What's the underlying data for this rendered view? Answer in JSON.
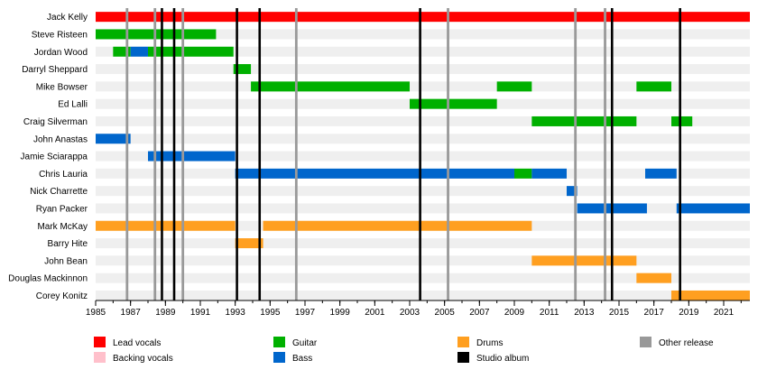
{
  "chart_data": {
    "type": "timeline",
    "x_range": [
      1985,
      2022.5
    ],
    "x_ticks": [
      "1985",
      "1987",
      "1989",
      "1991",
      "1993",
      "1995",
      "1997",
      "1999",
      "2001",
      "2003",
      "2005",
      "2007",
      "2009",
      "2011",
      "2013",
      "2015",
      "2017",
      "2019",
      "2021"
    ],
    "colors": {
      "lead_vocals": "#ff0000",
      "backing_vocals": "#ffc0cb",
      "guitar": "#00b000",
      "bass": "#0066cc",
      "drums": "#ff9f20",
      "studio_album": "#000000",
      "other_release": "#999999"
    },
    "members": [
      {
        "name": "Jack Kelly",
        "spans": [
          {
            "role": "lead_vocals",
            "start": 1985,
            "end": 2022.5
          }
        ]
      },
      {
        "name": "Steve Risteen",
        "spans": [
          {
            "role": "guitar",
            "start": 1985,
            "end": 1991.9
          }
        ]
      },
      {
        "name": "Jordan Wood",
        "spans": [
          {
            "role": "guitar",
            "start": 1986.0,
            "end": 1987.0
          },
          {
            "role": "bass",
            "start": 1987.0,
            "end": 1988.0
          },
          {
            "role": "guitar",
            "start": 1988.0,
            "end": 1992.9
          }
        ]
      },
      {
        "name": "Darryl Sheppard",
        "spans": [
          {
            "role": "guitar",
            "start": 1992.9,
            "end": 1993.9
          }
        ]
      },
      {
        "name": "Mike Bowser",
        "spans": [
          {
            "role": "guitar",
            "start": 1993.9,
            "end": 2003.0
          },
          {
            "role": "guitar",
            "start": 2008.0,
            "end": 2010.0
          },
          {
            "role": "guitar",
            "start": 2016.0,
            "end": 2018.0
          }
        ]
      },
      {
        "name": "Ed Lalli",
        "spans": [
          {
            "role": "guitar",
            "start": 2003.0,
            "end": 2008.0
          }
        ]
      },
      {
        "name": "Craig Silverman",
        "spans": [
          {
            "role": "guitar",
            "start": 2010.0,
            "end": 2016.0
          },
          {
            "role": "guitar",
            "start": 2018.0,
            "end": 2019.2
          }
        ]
      },
      {
        "name": "John Anastas",
        "spans": [
          {
            "role": "bass",
            "start": 1985,
            "end": 1987.0
          }
        ]
      },
      {
        "name": "Jamie Sciarappa",
        "spans": [
          {
            "role": "bass",
            "start": 1988.0,
            "end": 1993.0
          }
        ]
      },
      {
        "name": "Chris Lauria",
        "spans": [
          {
            "role": "bass",
            "start": 1993.0,
            "end": 2009.0
          },
          {
            "role": "guitar",
            "start": 2009.0,
            "end": 2010.0
          },
          {
            "role": "bass",
            "start": 2010.0,
            "end": 2012.0
          },
          {
            "role": "bass",
            "start": 2016.5,
            "end": 2018.3
          }
        ]
      },
      {
        "name": "Nick Charrette",
        "spans": [
          {
            "role": "bass",
            "start": 2012.0,
            "end": 2012.6
          }
        ]
      },
      {
        "name": "Ryan Packer",
        "spans": [
          {
            "role": "bass",
            "start": 2012.6,
            "end": 2016.6
          },
          {
            "role": "bass",
            "start": 2018.3,
            "end": 2022.5
          }
        ]
      },
      {
        "name": "Mark McKay",
        "spans": [
          {
            "role": "drums",
            "start": 1985,
            "end": 1993.0
          },
          {
            "role": "drums",
            "start": 1994.6,
            "end": 2010.0
          }
        ]
      },
      {
        "name": "Barry Hite",
        "spans": [
          {
            "role": "drums",
            "start": 1993.0,
            "end": 1994.6
          }
        ]
      },
      {
        "name": "John Bean",
        "spans": [
          {
            "role": "drums",
            "start": 2010.0,
            "end": 2016.0
          }
        ]
      },
      {
        "name": "Douglas Mackinnon",
        "spans": [
          {
            "role": "drums",
            "start": 2016.0,
            "end": 2018.0
          }
        ]
      },
      {
        "name": "Corey Konitz",
        "spans": [
          {
            "role": "drums",
            "start": 2018.0,
            "end": 2022.5
          }
        ]
      }
    ],
    "releases": [
      {
        "type": "other_release",
        "year": 1986.8
      },
      {
        "type": "other_release",
        "year": 1988.4
      },
      {
        "type": "other_release",
        "year": 1990.0
      },
      {
        "type": "other_release",
        "year": 1996.5
      },
      {
        "type": "other_release",
        "year": 2005.2
      },
      {
        "type": "other_release",
        "year": 2012.5
      },
      {
        "type": "other_release",
        "year": 2014.2
      },
      {
        "type": "studio_album",
        "year": 1988.8
      },
      {
        "type": "studio_album",
        "year": 1989.5
      },
      {
        "type": "studio_album",
        "year": 1993.1
      },
      {
        "type": "studio_album",
        "year": 1994.4
      },
      {
        "type": "studio_album",
        "year": 2003.6
      },
      {
        "type": "studio_album",
        "year": 2014.6
      },
      {
        "type": "studio_album",
        "year": 2018.5
      }
    ],
    "legend": [
      {
        "role": "lead_vocals",
        "label": "Lead vocals"
      },
      {
        "role": "backing_vocals",
        "label": "Backing vocals"
      },
      {
        "role": "guitar",
        "label": "Guitar"
      },
      {
        "role": "bass",
        "label": "Bass"
      },
      {
        "role": "drums",
        "label": "Drums"
      },
      {
        "role": "studio_album",
        "label": "Studio album"
      },
      {
        "role": "other_release",
        "label": "Other release"
      }
    ]
  }
}
